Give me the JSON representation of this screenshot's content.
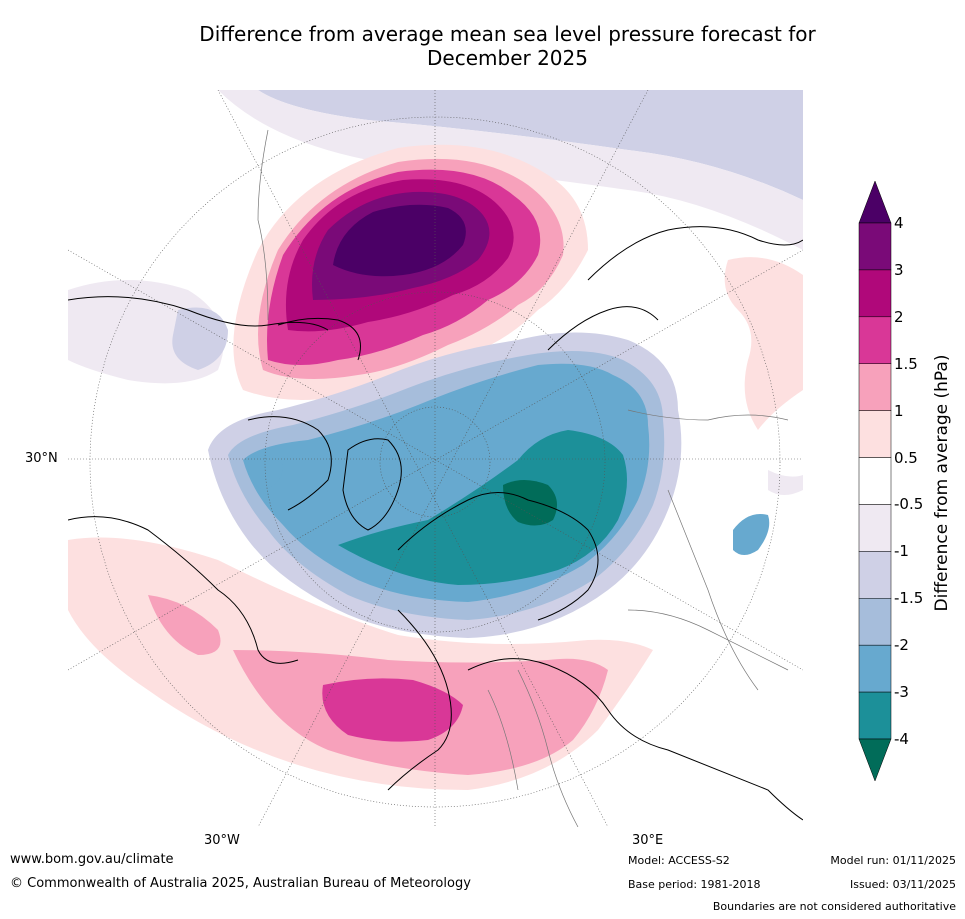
{
  "title_line1": "Difference from average mean sea level pressure forecast for",
  "title_line2": "December 2025",
  "map_labels": {
    "lat30n": "30°N",
    "lon30w": "30°W",
    "lon30e": "30°E"
  },
  "colorbar": {
    "title": "Difference from average (hPa)",
    "levels": [
      "4",
      "3",
      "2",
      "1.5",
      "1",
      "0.5",
      "-0.5",
      "-1",
      "-1.5",
      "-2",
      "-3",
      "-4"
    ],
    "colors": [
      "#4b0066",
      "#7a0a78",
      "#b0087a",
      "#d93797",
      "#f7a1bb",
      "#fde0e0",
      "#ffffff",
      "#efe9f2",
      "#cfd0e6",
      "#a6bddb",
      "#67a9cf",
      "#1c9099",
      "#016c59"
    ]
  },
  "footer": {
    "website": "www.bom.gov.au/climate",
    "copyright": "© Commonwealth of Australia 2025, Australian Bureau of Meteorology",
    "model": "Model: ACCESS-S2",
    "base_period": "Base period: 1981-2018",
    "model_run": "Model run: 01/11/2025",
    "issued": "Issued: 03/11/2025",
    "boundaries_note": "Boundaries are not considered authoritative"
  }
}
